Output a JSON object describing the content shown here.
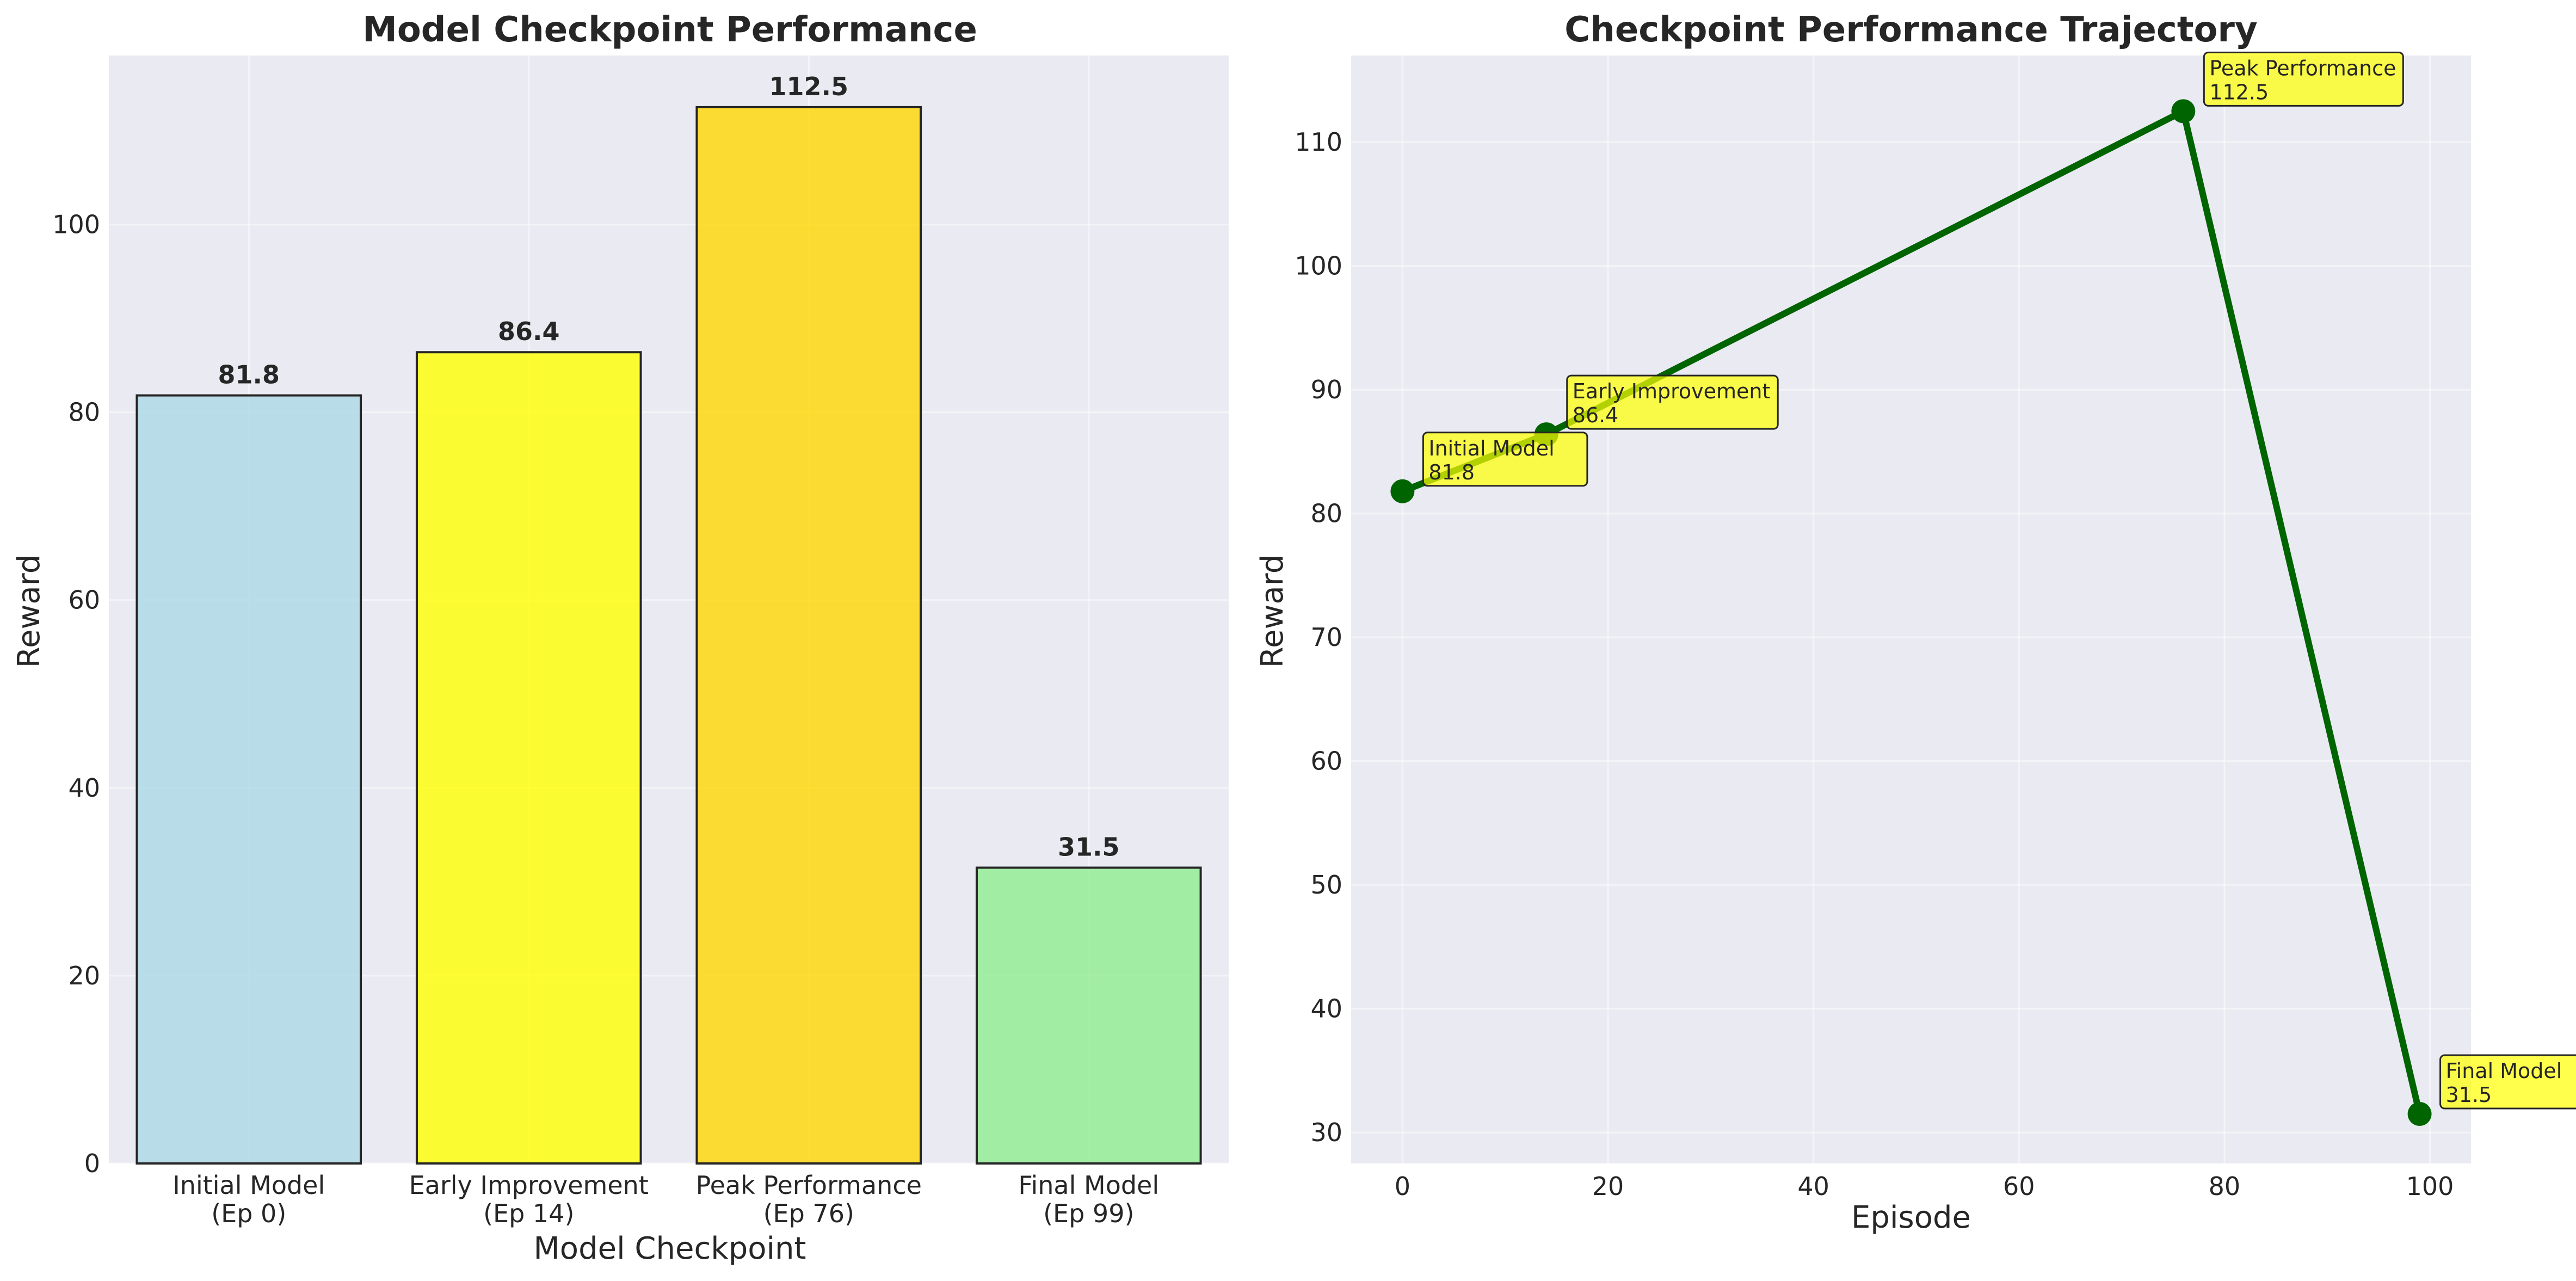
{
  "chart_data": [
    {
      "type": "bar",
      "title": "Model Checkpoint Performance",
      "xlabel": "Model Checkpoint",
      "ylabel": "Reward",
      "ylim": [
        0,
        118
      ],
      "yticks": [
        0,
        20,
        40,
        60,
        80,
        100
      ],
      "grid": true,
      "categories": [
        [
          "Initial Model",
          "(Ep 0)"
        ],
        [
          "Early Improvement",
          "(Ep 14)"
        ],
        [
          "Peak Performance",
          "(Ep 76)"
        ],
        [
          "Final Model",
          "(Ep 99)"
        ]
      ],
      "values": [
        81.8,
        86.4,
        112.5,
        31.5
      ],
      "value_labels": [
        "81.8",
        "86.4",
        "112.5",
        "31.5"
      ],
      "colors": [
        "#add8e6",
        "#ffff00",
        "#ffd700",
        "#90ee90"
      ]
    },
    {
      "type": "line",
      "title": "Checkpoint Performance Trajectory",
      "xlabel": "Episode",
      "ylabel": "Reward",
      "xlim": [
        -5,
        104
      ],
      "ylim": [
        27.5,
        117
      ],
      "xticks": [
        0,
        20,
        40,
        60,
        80,
        100
      ],
      "yticks": [
        30,
        40,
        50,
        60,
        70,
        80,
        90,
        100,
        110
      ],
      "grid": true,
      "x": [
        0,
        14,
        76,
        99
      ],
      "y": [
        81.8,
        86.4,
        112.5,
        31.5
      ],
      "line_color": "#006400",
      "annotations": [
        {
          "name": "Initial Model",
          "value": "81.8"
        },
        {
          "name": "Early Improvement",
          "value": "86.4"
        },
        {
          "name": "Peak Performance",
          "value": "112.5"
        },
        {
          "name": "Final Model",
          "value": "31.5"
        }
      ],
      "annotation_color": "#ffff00"
    }
  ],
  "style": {
    "plot_background": "#eaeaf2",
    "grid_color": "#ffffff",
    "text_color": "#262626"
  }
}
